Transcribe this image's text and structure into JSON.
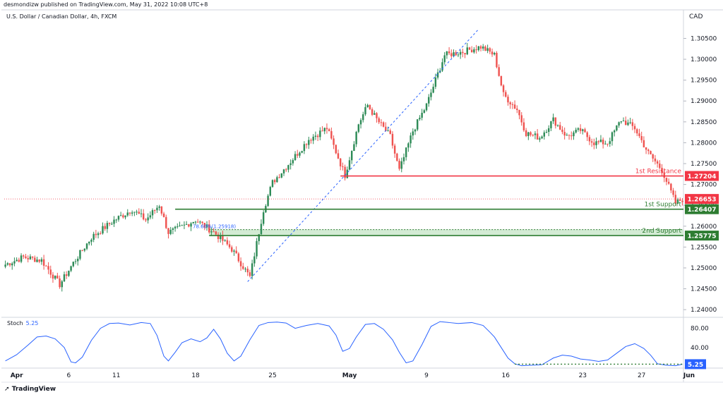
{
  "header": {
    "publisher": "desmondizw published on TradingView.com, May 31, 2022 10:08 UTC+8"
  },
  "symbol": {
    "name": "U.S. Dollar / Canadian Dollar, 4h, FXCM"
  },
  "currency": "CAD",
  "brand": "TradingView",
  "colors": {
    "bull": "#26a69a",
    "bull_body": "#2e8b57",
    "bear": "#ef5350",
    "resistance": "#f23645",
    "support": "#2e7d32",
    "support_fill": "#c8e6c9",
    "stoch": "#2962ff",
    "price_tag": "#f23645"
  },
  "chart_data": [
    {
      "type": "candlestick",
      "title": "U.S. Dollar / Canadian Dollar, 4h, FXCM",
      "ylim": [
        1.2385,
        1.3115
      ],
      "y_ticks": [
        "1.30500",
        "1.30000",
        "1.29500",
        "1.29000",
        "1.28500",
        "1.28000",
        "1.27500",
        "1.27000",
        "1.26500",
        "1.26000",
        "1.25500",
        "1.25000",
        "1.24500",
        "1.24000"
      ],
      "x_ticks": [
        {
          "label": "Apr",
          "bar": 5
        },
        {
          "label": "6",
          "bar": 28
        },
        {
          "label": "11",
          "bar": 49
        },
        {
          "label": "18",
          "bar": 84
        },
        {
          "label": "25",
          "bar": 118
        },
        {
          "label": "May",
          "bar": 152
        },
        {
          "label": "9",
          "bar": 186
        },
        {
          "label": "16",
          "bar": 221
        },
        {
          "label": "23",
          "bar": 255
        },
        {
          "label": "27",
          "bar": 281
        },
        {
          "label": "Jun",
          "bar": 302
        }
      ],
      "anchors": [
        {
          "bar": 0,
          "price": 1.2508
        },
        {
          "bar": 8,
          "price": 1.2526
        },
        {
          "bar": 16,
          "price": 1.2518
        },
        {
          "bar": 24,
          "price": 1.246
        },
        {
          "bar": 30,
          "price": 1.2512
        },
        {
          "bar": 38,
          "price": 1.2573
        },
        {
          "bar": 48,
          "price": 1.2614
        },
        {
          "bar": 56,
          "price": 1.264
        },
        {
          "bar": 62,
          "price": 1.2615
        },
        {
          "bar": 68,
          "price": 1.2651
        },
        {
          "bar": 72,
          "price": 1.2585
        },
        {
          "bar": 76,
          "price": 1.2593
        },
        {
          "bar": 84,
          "price": 1.2615
        },
        {
          "bar": 92,
          "price": 1.2586
        },
        {
          "bar": 100,
          "price": 1.2545
        },
        {
          "bar": 108,
          "price": 1.2478
        },
        {
          "bar": 114,
          "price": 1.264
        },
        {
          "bar": 118,
          "price": 1.2705
        },
        {
          "bar": 126,
          "price": 1.2755
        },
        {
          "bar": 134,
          "price": 1.2808
        },
        {
          "bar": 142,
          "price": 1.2835
        },
        {
          "bar": 150,
          "price": 1.2722
        },
        {
          "bar": 156,
          "price": 1.2845
        },
        {
          "bar": 160,
          "price": 1.289
        },
        {
          "bar": 164,
          "price": 1.2856
        },
        {
          "bar": 170,
          "price": 1.2815
        },
        {
          "bar": 174,
          "price": 1.2733
        },
        {
          "bar": 180,
          "price": 1.2828
        },
        {
          "bar": 186,
          "price": 1.289
        },
        {
          "bar": 194,
          "price": 1.301
        },
        {
          "bar": 202,
          "price": 1.3018
        },
        {
          "bar": 210,
          "price": 1.303
        },
        {
          "bar": 216,
          "price": 1.301
        },
        {
          "bar": 220,
          "price": 1.2915
        },
        {
          "bar": 226,
          "price": 1.288
        },
        {
          "bar": 230,
          "price": 1.2823
        },
        {
          "bar": 236,
          "price": 1.2812
        },
        {
          "bar": 242,
          "price": 1.2855
        },
        {
          "bar": 248,
          "price": 1.2815
        },
        {
          "bar": 254,
          "price": 1.283
        },
        {
          "bar": 260,
          "price": 1.28
        },
        {
          "bar": 266,
          "price": 1.28
        },
        {
          "bar": 272,
          "price": 1.2855
        },
        {
          "bar": 278,
          "price": 1.2835
        },
        {
          "bar": 284,
          "price": 1.2775
        },
        {
          "bar": 290,
          "price": 1.2735
        },
        {
          "bar": 296,
          "price": 1.2655
        },
        {
          "bar": 299,
          "price": 1.2665
        }
      ],
      "last_price": "1.26653",
      "levels": [
        {
          "name": "1st Resistance",
          "value": 1.27204,
          "label": "1.27204",
          "kind": "resistance",
          "from_bar": 148
        },
        {
          "name": "1st Support",
          "value": 1.26407,
          "label": "1.26407",
          "kind": "support",
          "from_bar": 75
        },
        {
          "name": "2nd Support",
          "value": 1.25775,
          "label": "1.25775",
          "kind": "support_zone",
          "zone_top": 1.25918,
          "from_bar": 90
        }
      ],
      "fib_label": "78.60%(1.25918)",
      "trendline": {
        "from_bar": 107,
        "from_price": 1.2467,
        "to_bar": 209,
        "to_price": 1.3072
      }
    },
    {
      "type": "line",
      "title": "Stoch",
      "value_label": "5.25",
      "ylim": [
        0,
        100
      ],
      "y_ticks": [
        "80.00",
        "40.00"
      ],
      "oversold_level": 5.25,
      "points": [
        [
          0,
          12
        ],
        [
          5,
          25
        ],
        [
          10,
          45
        ],
        [
          14,
          62
        ],
        [
          18,
          64
        ],
        [
          22,
          58
        ],
        [
          26,
          40
        ],
        [
          29,
          10
        ],
        [
          31,
          8
        ],
        [
          34,
          20
        ],
        [
          38,
          55
        ],
        [
          42,
          80
        ],
        [
          46,
          90
        ],
        [
          50,
          91
        ],
        [
          55,
          87
        ],
        [
          60,
          92
        ],
        [
          64,
          90
        ],
        [
          67,
          65
        ],
        [
          70,
          22
        ],
        [
          72,
          12
        ],
        [
          75,
          30
        ],
        [
          78,
          50
        ],
        [
          82,
          58
        ],
        [
          86,
          52
        ],
        [
          89,
          60
        ],
        [
          92,
          78
        ],
        [
          95,
          58
        ],
        [
          98,
          28
        ],
        [
          101,
          12
        ],
        [
          104,
          22
        ],
        [
          108,
          56
        ],
        [
          112,
          86
        ],
        [
          116,
          92
        ],
        [
          120,
          93
        ],
        [
          124,
          91
        ],
        [
          128,
          80
        ],
        [
          133,
          86
        ],
        [
          138,
          90
        ],
        [
          143,
          85
        ],
        [
          146,
          66
        ],
        [
          149,
          32
        ],
        [
          152,
          38
        ],
        [
          155,
          62
        ],
        [
          159,
          88
        ],
        [
          163,
          90
        ],
        [
          167,
          78
        ],
        [
          171,
          56
        ],
        [
          174,
          30
        ],
        [
          177,
          8
        ],
        [
          180,
          12
        ],
        [
          184,
          46
        ],
        [
          188,
          84
        ],
        [
          192,
          94
        ],
        [
          196,
          92
        ],
        [
          200,
          90
        ],
        [
          206,
          92
        ],
        [
          211,
          86
        ],
        [
          214,
          72
        ],
        [
          216,
          62
        ],
        [
          219,
          40
        ],
        [
          222,
          18
        ],
        [
          225,
          6
        ],
        [
          228,
          2
        ],
        [
          232,
          3
        ],
        [
          237,
          4
        ],
        [
          242,
          18
        ],
        [
          246,
          24
        ],
        [
          250,
          22
        ],
        [
          254,
          16
        ],
        [
          258,
          14
        ],
        [
          262,
          11
        ],
        [
          266,
          14
        ],
        [
          270,
          28
        ],
        [
          274,
          42
        ],
        [
          278,
          48
        ],
        [
          282,
          38
        ],
        [
          285,
          24
        ],
        [
          288,
          6
        ],
        [
          292,
          3
        ],
        [
          296,
          2
        ],
        [
          299,
          5
        ]
      ]
    }
  ]
}
